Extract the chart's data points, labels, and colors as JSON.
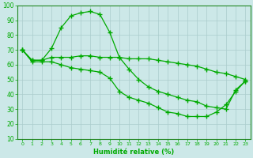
{
  "xlabel": "Humidité relative (%)",
  "bg_color": "#cce8e8",
  "grid_color": "#aacccc",
  "line_color": "#00aa00",
  "xlim": [
    -0.5,
    23.5
  ],
  "ylim": [
    10,
    100
  ],
  "xticks": [
    0,
    1,
    2,
    3,
    4,
    5,
    6,
    7,
    8,
    9,
    10,
    11,
    12,
    13,
    14,
    15,
    16,
    17,
    18,
    19,
    20,
    21,
    22,
    23
  ],
  "yticks": [
    10,
    20,
    30,
    40,
    50,
    60,
    70,
    80,
    90,
    100
  ],
  "series": {
    "top": [
      70,
      63,
      63,
      71,
      85,
      93,
      95,
      96,
      94,
      82,
      65,
      64,
      64,
      64,
      63,
      62,
      61,
      60,
      59,
      57,
      55,
      54,
      52,
      50
    ],
    "mid": [
      70,
      63,
      63,
      65,
      65,
      65,
      66,
      66,
      65,
      65,
      65,
      57,
      50,
      45,
      42,
      40,
      38,
      36,
      35,
      32,
      31,
      30,
      43,
      49
    ],
    "bot": [
      70,
      62,
      62,
      62,
      60,
      58,
      57,
      56,
      55,
      51,
      42,
      38,
      36,
      34,
      31,
      28,
      27,
      25,
      25,
      25,
      28,
      33,
      42,
      49
    ]
  }
}
